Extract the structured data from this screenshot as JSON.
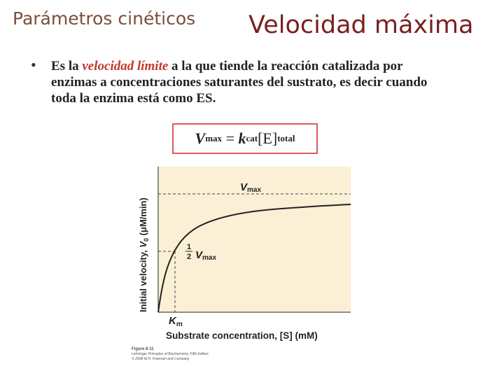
{
  "header": {
    "subtitle": "Parámetros cinéticos",
    "title": "Velocidad máxima"
  },
  "bullet": {
    "symbol": "•",
    "before": "Es la ",
    "highlight": "velocidad límite",
    "after": " a la que tiende la reacción catalizada por enzimas a concentraciones saturantes del sustrato, es decir cuando toda la enzima está como ES."
  },
  "formula": {
    "v": "V",
    "v_sub": "max",
    "eq": " = ",
    "k": "k",
    "k_sub": "cat",
    "e": "[E]",
    "e_sub": "total"
  },
  "figure": {
    "ylabel_pre": "Initial velocity, ",
    "ylabel_v": "V",
    "ylabel_sub": "0",
    "ylabel_unit": " (μM/min)",
    "xlabel": "Substrate concentration, [S] (mM)",
    "vmax_label": "V",
    "vmax_sub": "max",
    "half_num": "1",
    "half_den": "2",
    "half_v": "V",
    "half_sub": "max",
    "km_label": "K",
    "km_sub": "m",
    "colors": {
      "plot_bg": "#fbf0d5",
      "curve": "#222222",
      "dashed": "#444444",
      "accent": "#c0392b",
      "title": "#7a1f1f"
    }
  },
  "caption": {
    "line1": "Figure 6-11",
    "line2": "Lehninger Principles of Biochemistry, Fifth Edition",
    "line3": "© 2008 W.H. Freeman and Company"
  }
}
